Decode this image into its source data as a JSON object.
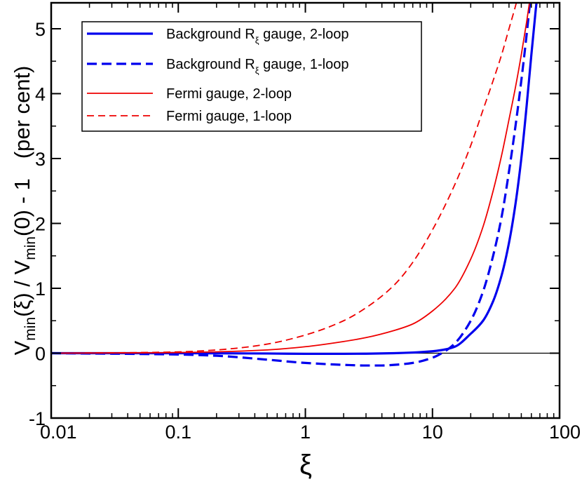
{
  "chart_data": {
    "type": "line",
    "xscale": "log",
    "xlim": [
      0.01,
      100
    ],
    "ylim": [
      -1,
      5.4
    ],
    "xlabel": "ξ",
    "ylabel": {
      "v1": "V",
      "sub1": "min",
      "arg1": "(ξ) / ",
      "v2": "V",
      "sub2": "min",
      "rest": "(0) - 1",
      "units": "(per cent)"
    },
    "x_ticks": [
      {
        "value": 0.01,
        "label": "0.01"
      },
      {
        "value": 0.1,
        "label": "0.1"
      },
      {
        "value": 1,
        "label": "1"
      },
      {
        "value": 10,
        "label": "10"
      },
      {
        "value": 100,
        "label": "100"
      }
    ],
    "y_ticks": [
      {
        "value": -1,
        "label": "-1"
      },
      {
        "value": 0,
        "label": "0"
      },
      {
        "value": 1,
        "label": "1"
      },
      {
        "value": 2,
        "label": "2"
      },
      {
        "value": 3,
        "label": "3"
      },
      {
        "value": 4,
        "label": "4"
      },
      {
        "value": 5,
        "label": "5"
      }
    ],
    "legend_position": "top-left",
    "series": [
      {
        "name": "Background Rξ gauge, 2-loop",
        "label_main": "Background R",
        "label_sub": "ξ",
        "label_rest": " gauge, 2-loop",
        "color": "#0000ee",
        "dash": "solid",
        "weight": "thick",
        "x": [
          0.01,
          0.1,
          0.5,
          1,
          2,
          3,
          5,
          7,
          10,
          12,
          15,
          20,
          25,
          30,
          35,
          40,
          45,
          50,
          55,
          60,
          65,
          70
        ],
        "y": [
          0.0,
          0.0,
          -0.005,
          -0.01,
          -0.01,
          -0.008,
          0.0,
          0.01,
          0.03,
          0.05,
          0.1,
          0.3,
          0.5,
          0.8,
          1.2,
          1.7,
          2.3,
          3.0,
          3.8,
          4.6,
          5.3,
          5.9
        ]
      },
      {
        "name": "Background Rξ gauge, 1-loop",
        "label_main": "Background R",
        "label_sub": "ξ",
        "label_rest": " gauge, 1-loop",
        "color": "#0000ee",
        "dash": "dashed",
        "weight": "thick",
        "x": [
          0.01,
          0.1,
          0.2,
          0.5,
          1,
          2,
          3,
          4,
          5,
          7,
          10,
          13,
          15,
          20,
          25,
          30,
          35,
          40,
          45,
          50,
          55,
          60,
          65
        ],
        "y": [
          0.0,
          -0.02,
          -0.04,
          -0.1,
          -0.15,
          -0.18,
          -0.19,
          -0.19,
          -0.18,
          -0.15,
          -0.07,
          0.05,
          0.15,
          0.5,
          0.95,
          1.5,
          2.1,
          2.8,
          3.5,
          4.2,
          4.9,
          5.6,
          6.2
        ]
      },
      {
        "name": "Fermi gauge, 2-loop",
        "label_main": "Fermi gauge, 2-loop",
        "label_sub": "",
        "label_rest": "",
        "color": "#ee0000",
        "dash": "solid",
        "weight": "thin",
        "x": [
          0.01,
          0.05,
          0.1,
          0.2,
          0.5,
          1,
          2,
          3,
          5,
          7,
          10,
          15,
          20,
          25,
          30,
          35,
          40,
          45,
          50,
          55,
          60
        ],
        "y": [
          0.0,
          0.005,
          0.01,
          0.02,
          0.05,
          0.1,
          0.18,
          0.24,
          0.35,
          0.45,
          0.65,
          1.0,
          1.45,
          1.95,
          2.5,
          3.05,
          3.6,
          4.1,
          4.6,
          5.1,
          5.6
        ]
      },
      {
        "name": "Fermi gauge, 1-loop",
        "label_main": "Fermi gauge, 1-loop",
        "label_sub": "",
        "label_rest": "",
        "color": "#ee0000",
        "dash": "dashed",
        "weight": "thin",
        "x": [
          0.01,
          0.05,
          0.1,
          0.2,
          0.3,
          0.5,
          1,
          2,
          3,
          5,
          7,
          10,
          15,
          20,
          25,
          30,
          35,
          40,
          45,
          50
        ],
        "y": [
          0.0,
          0.01,
          0.02,
          0.05,
          0.08,
          0.14,
          0.28,
          0.5,
          0.7,
          1.05,
          1.4,
          1.9,
          2.6,
          3.2,
          3.75,
          4.2,
          4.6,
          5.0,
          5.35,
          5.7
        ]
      }
    ]
  }
}
